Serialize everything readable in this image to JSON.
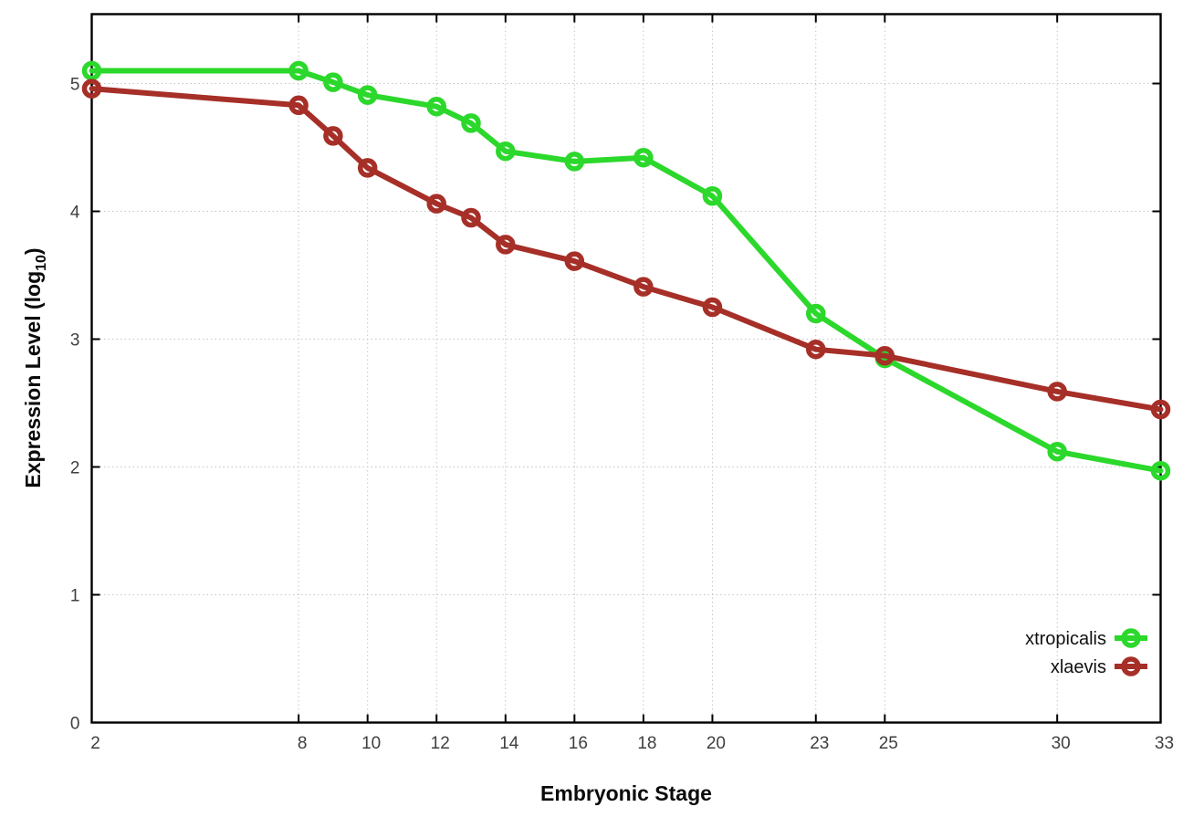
{
  "page": {
    "background": "#ffffff"
  },
  "chart_data": {
    "type": "line",
    "title": "",
    "xlabel": "Embryonic Stage",
    "ylabel": "Expression Level (log10)",
    "ylabel_rich": {
      "main": "Expression Level (log",
      "sub": "10",
      "end": ")"
    },
    "xlim": [
      2,
      33
    ],
    "ylim": [
      0,
      5.54
    ],
    "xticks": [
      2,
      8,
      10,
      12,
      14,
      16,
      18,
      20,
      23,
      25,
      30,
      33
    ],
    "yticks": [
      0,
      1,
      2,
      3,
      4,
      5
    ],
    "grid": true,
    "grid_color": "#c6c6c6",
    "border_color": "#000000",
    "legend": {
      "position": "inside-right-bottom",
      "entries": [
        "xtropicalis",
        "xlaevis"
      ]
    },
    "x": [
      2,
      8,
      9,
      10,
      12,
      13,
      14,
      16,
      18,
      20,
      23,
      25,
      30,
      33
    ],
    "series": [
      {
        "name": "xtropicalis",
        "color": "#2bd82b",
        "values": [
          5.1,
          5.1,
          5.01,
          4.91,
          4.82,
          4.69,
          4.47,
          4.39,
          4.42,
          4.12,
          3.2,
          2.85,
          2.12,
          1.97
        ]
      },
      {
        "name": "xlaevis",
        "color": "#a62f28",
        "values": [
          4.96,
          4.83,
          4.59,
          4.34,
          4.06,
          3.95,
          3.74,
          3.61,
          3.41,
          3.25,
          2.92,
          2.87,
          2.59,
          2.45
        ]
      }
    ]
  }
}
